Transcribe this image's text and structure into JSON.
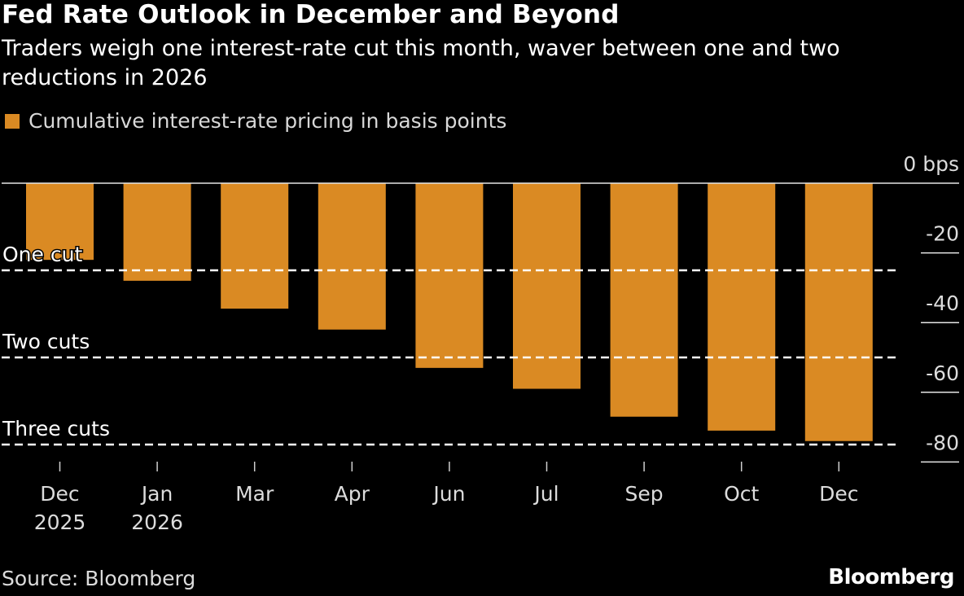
{
  "header": {
    "title": "Fed Rate Outlook in December and Beyond",
    "subtitle": "Traders weigh one interest-rate cut this month, waver between one and two reductions in 2026"
  },
  "legend": {
    "label": "Cumulative interest-rate pricing in basis points",
    "color": "#DA8A23"
  },
  "footer": {
    "source": "Source: Bloomberg",
    "brand": "Bloomberg"
  },
  "chart_data": {
    "type": "bar",
    "title": "Fed Rate Outlook in December and Beyond",
    "subtitle": "Traders weigh one interest-rate cut this month, waver between one and two reductions in 2026",
    "xlabel": "",
    "ylabel": "",
    "categories": [
      "Dec 2025",
      "Jan 2026",
      "Mar",
      "Apr",
      "Jun",
      "Jul",
      "Sep",
      "Oct",
      "Dec"
    ],
    "category_lines": [
      [
        "Dec",
        "2025"
      ],
      [
        "Jan",
        "2026"
      ],
      [
        "Mar"
      ],
      [
        "Apr"
      ],
      [
        "Jun"
      ],
      [
        "Jul"
      ],
      [
        "Sep"
      ],
      [
        "Oct"
      ],
      [
        "Dec"
      ]
    ],
    "series": [
      {
        "name": "Cumulative interest-rate pricing in basis points",
        "color": "#DA8A23",
        "values": [
          -22,
          -28,
          -36,
          -42,
          -53,
          -59,
          -67,
          -71,
          -74
        ]
      }
    ],
    "ylim": [
      -80,
      0
    ],
    "yticks": [
      0,
      -20,
      -40,
      -60,
      -80
    ],
    "ytick_labels": [
      "0 bps",
      "-20",
      "-40",
      "-60",
      "-80"
    ],
    "reference_lines": [
      {
        "label": "One cut",
        "value": -25
      },
      {
        "label": "Two cuts",
        "value": -50
      },
      {
        "label": "Three cuts",
        "value": -75
      }
    ],
    "legend_position": "top-left",
    "grid": false,
    "yaxis_side": "right"
  }
}
